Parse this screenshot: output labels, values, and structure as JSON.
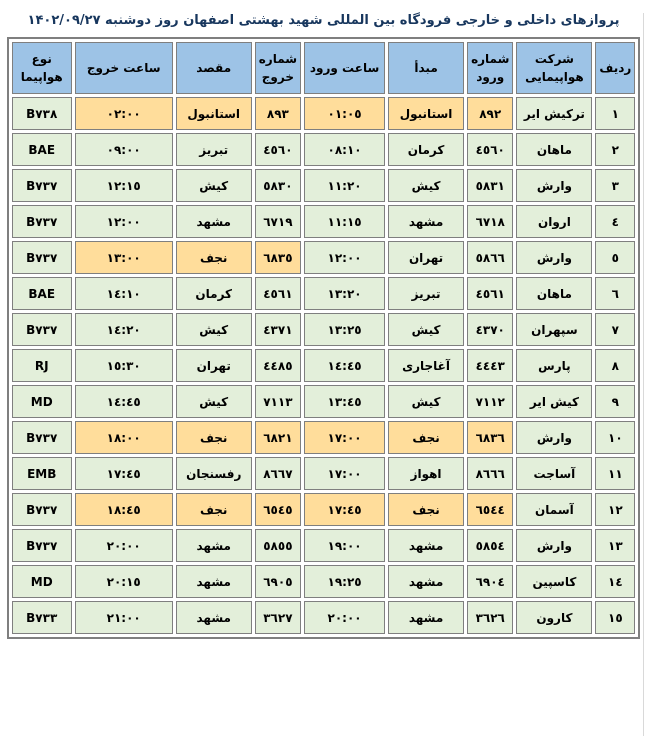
{
  "title": "پروازهای داخلی و خارجی فرودگاه بین المللی شهید بهشتی اصفهان روز دوشنبه ۱۴۰۲/۰۹/۲۷",
  "colors": {
    "header_bg": "#9DC3E6",
    "row_bg": "#E3EFDA",
    "highlight_bg": "#FFDD9B",
    "border": "#7F7F7F",
    "title_color": "#17365D",
    "text": "#000000",
    "page_bg": "#FFFFFF"
  },
  "table": {
    "columns": [
      {
        "key": "row-number",
        "label": "ردیف"
      },
      {
        "key": "airline",
        "label": "شرکت هواپیمایی"
      },
      {
        "key": "arrival-number",
        "label": "شماره ورود"
      },
      {
        "key": "origin",
        "label": "مبدأ"
      },
      {
        "key": "arrival-time",
        "label": "ساعت ورود"
      },
      {
        "key": "departure-number",
        "label": "شماره خروج"
      },
      {
        "key": "destination",
        "label": "مقصد"
      },
      {
        "key": "departure-time",
        "label": "ساعت خروج"
      },
      {
        "key": "aircraft-type",
        "label": "نوع هواپیما"
      }
    ],
    "rows": [
      {
        "cells": [
          "١",
          "ترکیش ایر",
          "٨٩٢",
          "استانبول",
          "٠١:٠٥",
          "٨٩٣",
          "استانبول",
          "٠٢:٠٠",
          "B٧٣٨"
        ],
        "highlight": [
          2,
          3,
          4,
          5,
          6,
          7
        ]
      },
      {
        "cells": [
          "٢",
          "ماهان",
          "٤٥٦٠",
          "کرمان",
          "٠٨:١٠",
          "٤٥٦٠",
          "تبریز",
          "٠٩:٠٠",
          "BAE"
        ],
        "highlight": []
      },
      {
        "cells": [
          "٣",
          "وارش",
          "٥٨٣١",
          "کیش",
          "١١:٢٠",
          "٥٨٣٠",
          "کیش",
          "١٢:١٥",
          "B٧٣٧"
        ],
        "highlight": []
      },
      {
        "cells": [
          "٤",
          "اروان",
          "٦٧١٨",
          "مشهد",
          "١١:١٥",
          "٦٧١٩",
          "مشهد",
          "١٢:٠٠",
          "B٧٣٧"
        ],
        "highlight": []
      },
      {
        "cells": [
          "٥",
          "وارش",
          "٥٨٦٦",
          "تهران",
          "١٢:٠٠",
          "٦٨٣٥",
          "نجف",
          "١٣:٠٠",
          "B٧٣٧"
        ],
        "highlight": [
          5,
          6,
          7
        ]
      },
      {
        "cells": [
          "٦",
          "ماهان",
          "٤٥٦١",
          "تبریز",
          "١٣:٢٠",
          "٤٥٦١",
          "کرمان",
          "١٤:١٠",
          "BAE"
        ],
        "highlight": []
      },
      {
        "cells": [
          "٧",
          "سپهران",
          "٤٣٧٠",
          "کیش",
          "١٣:٢٥",
          "٤٣٧١",
          "کیش",
          "١٤:٢٠",
          "B٧٣٧"
        ],
        "highlight": []
      },
      {
        "cells": [
          "٨",
          "پارس",
          "٤٤٤٣",
          "آغاجاری",
          "١٤:٤٥",
          "٤٤٨٥",
          "تهران",
          "١٥:٣٠",
          "RJ"
        ],
        "highlight": []
      },
      {
        "cells": [
          "٩",
          "کیش ایر",
          "٧١١٢",
          "کیش",
          "١٣:٤٥",
          "٧١١٣",
          "کیش",
          "١٤:٤٥",
          "MD"
        ],
        "highlight": []
      },
      {
        "cells": [
          "١٠",
          "وارش",
          "٦٨٣٦",
          "نجف",
          "١٧:٠٠",
          "٦٨٢١",
          "نجف",
          "١٨:٠٠",
          "B٧٣٧"
        ],
        "highlight": [
          2,
          3,
          4,
          5,
          6,
          7
        ]
      },
      {
        "cells": [
          "١١",
          "آساجت",
          "٨٦٦٦",
          "اهواز",
          "١٧:٠٠",
          "٨٦٦٧",
          "رفسنجان",
          "١٧:٤٥",
          "EMB"
        ],
        "highlight": []
      },
      {
        "cells": [
          "١٢",
          "آسمان",
          "٦٥٤٤",
          "نجف",
          "١٧:٤٥",
          "٦٥٤٥",
          "نجف",
          "١٨:٤٥",
          "B٧٣٧"
        ],
        "highlight": [
          2,
          3,
          4,
          5,
          6,
          7
        ]
      },
      {
        "cells": [
          "١٣",
          "وارش",
          "٥٨٥٤",
          "مشهد",
          "١٩:٠٠",
          "٥٨٥٥",
          "مشهد",
          "٢٠:٠٠",
          "B٧٣٧"
        ],
        "highlight": []
      },
      {
        "cells": [
          "١٤",
          "کاسپین",
          "٦٩٠٤",
          "مشهد",
          "١٩:٢٥",
          "٦٩٠٥",
          "مشهد",
          "٢٠:١٥",
          "MD"
        ],
        "highlight": []
      },
      {
        "cells": [
          "١٥",
          "کارون",
          "٣٦٢٦",
          "مشهد",
          "٢٠:٠٠",
          "٣٦٢٧",
          "مشهد",
          "٢١:٠٠",
          "B٧٣٣"
        ],
        "highlight": []
      }
    ]
  }
}
